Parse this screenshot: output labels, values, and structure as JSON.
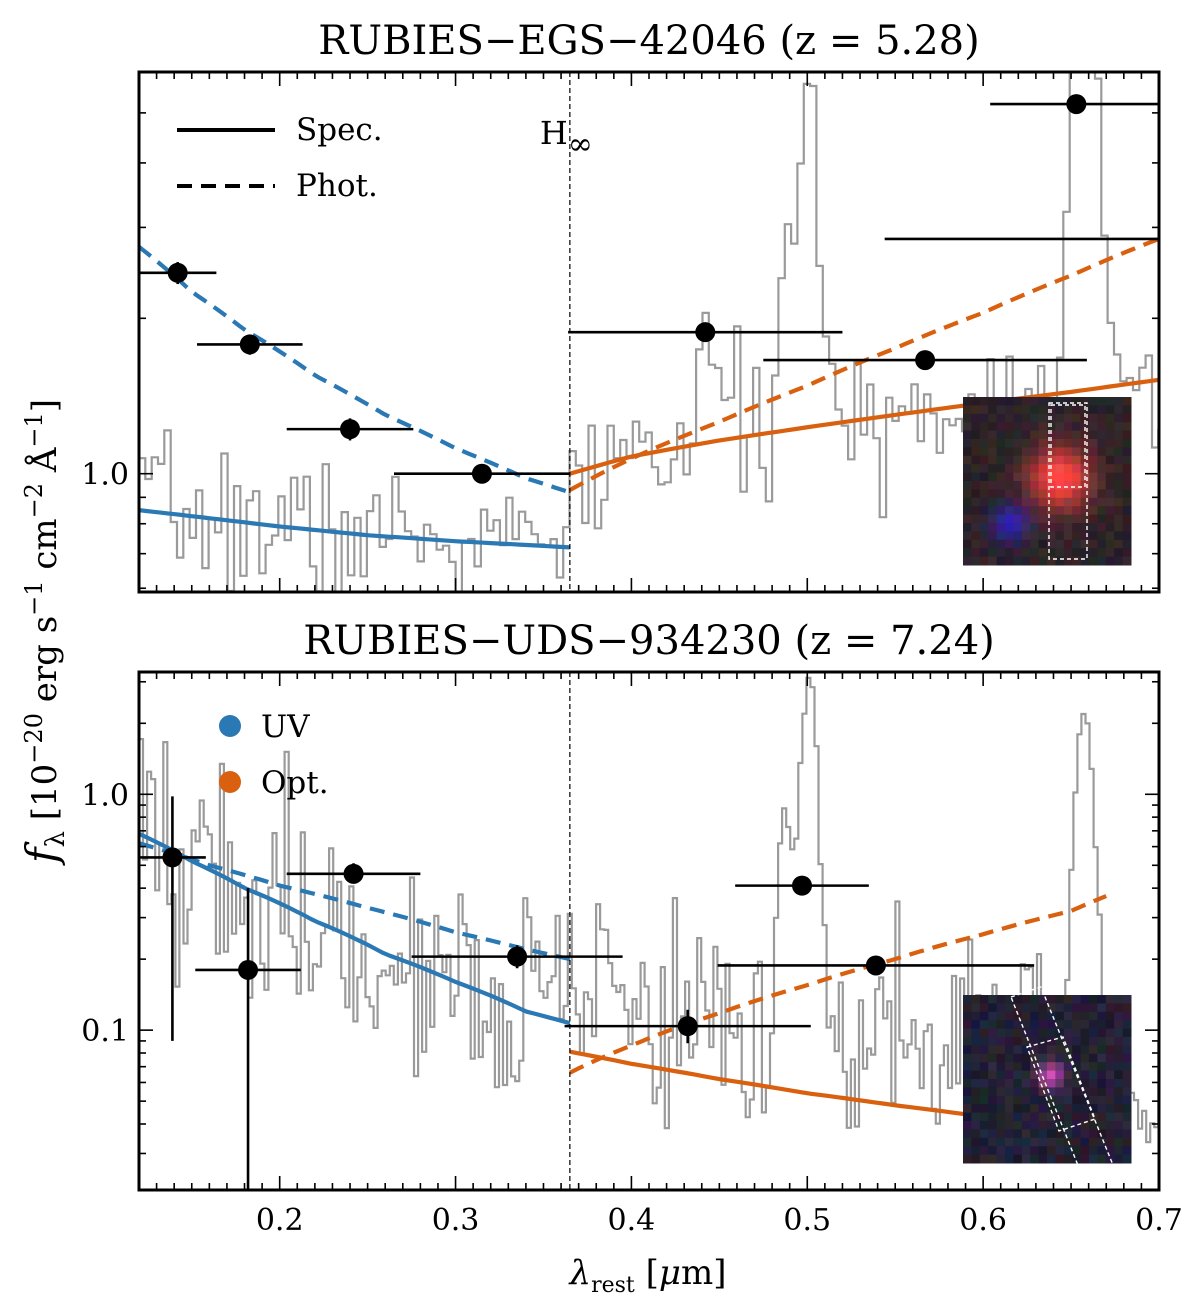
{
  "figure": {
    "ylabel": "f_λ [10^-20 erg s^-1 cm^-2 Å^-1]",
    "xlabel": "λ_rest [μm]"
  },
  "colors": {
    "uv": "#2a78b4",
    "opt": "#d9600e",
    "spectrum": "#9a9a9a",
    "photometry": "#000000"
  },
  "chart_data": [
    {
      "type": "line",
      "title": "RUBIES−EGS−42046 (z = 5.28)",
      "xlabel": "λ_rest [μm]",
      "ylabel": "f_λ [10^-20 erg s^-1 cm^-2 Å^-1]",
      "xlim": [
        0.12,
        0.7
      ],
      "ylim": [
        0.59,
        6.0
      ],
      "yscale": "log",
      "yticks": [
        1.0
      ],
      "ytick_labels": [
        "1.0"
      ],
      "xticks": [
        0.2,
        0.3,
        0.4,
        0.5,
        0.6,
        0.7
      ],
      "xtick_labels": [],
      "legend": {
        "position": "top-left",
        "entries": [
          {
            "label": "Spec.",
            "style": "solid"
          },
          {
            "label": "Phot.",
            "style": "dashed"
          }
        ]
      },
      "annotation": {
        "x": 0.365,
        "label": "H∞"
      },
      "spectrum_seed": 7,
      "spectrum_lines": [
        {
          "x": 0.441,
          "amp": 0.9,
          "w": 0.004
        },
        {
          "x": 0.486,
          "amp": 1.5,
          "w": 0.004
        },
        {
          "x": 0.496,
          "amp": 2.5,
          "w": 0.003
        },
        {
          "x": 0.5007,
          "amp": 4.0,
          "w": 0.003
        },
        {
          "x": 0.6563,
          "amp": 9.0,
          "w": 0.006
        }
      ],
      "series": [
        {
          "name": "UV",
          "fit": "Spec.",
          "x": [
            0.12,
            0.16,
            0.2,
            0.25,
            0.3,
            0.365
          ],
          "values": [
            0.85,
            0.82,
            0.79,
            0.76,
            0.74,
            0.72
          ]
        },
        {
          "name": "UV",
          "fit": "Phot.",
          "x": [
            0.12,
            0.15,
            0.18,
            0.22,
            0.26,
            0.3,
            0.34,
            0.365
          ],
          "values": [
            2.75,
            2.25,
            1.9,
            1.55,
            1.3,
            1.12,
            0.98,
            0.92
          ]
        },
        {
          "name": "Opt.",
          "fit": "Spec.",
          "x": [
            0.365,
            0.4,
            0.45,
            0.5,
            0.55,
            0.6,
            0.65,
            0.7
          ],
          "values": [
            1.0,
            1.08,
            1.16,
            1.23,
            1.3,
            1.37,
            1.44,
            1.52
          ]
        },
        {
          "name": "Opt.",
          "fit": "Phot.",
          "x": [
            0.365,
            0.4,
            0.45,
            0.5,
            0.55,
            0.6,
            0.65,
            0.7
          ],
          "values": [
            0.93,
            1.07,
            1.26,
            1.48,
            1.75,
            2.05,
            2.42,
            2.85
          ]
        }
      ],
      "photometry": [
        {
          "x": 0.142,
          "y": 2.45,
          "xerr": [
            0.022,
            0.022
          ],
          "yerr": [
            0.12,
            0.12
          ]
        },
        {
          "x": 0.183,
          "y": 1.78,
          "xerr": [
            0.03,
            0.03
          ],
          "yerr": [
            0.08,
            0.08
          ]
        },
        {
          "x": 0.24,
          "y": 1.22,
          "xerr": [
            0.036,
            0.036
          ],
          "yerr": [
            0.06,
            0.06
          ]
        },
        {
          "x": 0.315,
          "y": 1.0,
          "xerr": [
            0.05,
            0.05
          ],
          "yerr": [
            0.03,
            0.03
          ]
        },
        {
          "x": 0.442,
          "y": 1.88,
          "xerr": [
            0.078,
            0.078
          ],
          "yerr": [
            0.06,
            0.06
          ]
        },
        {
          "x": 0.567,
          "y": 1.66,
          "xerr": [
            0.092,
            0.092
          ],
          "yerr": [
            0.05,
            0.05
          ]
        },
        {
          "x": 0.653,
          "y": 5.2,
          "xerr": [
            0.049,
            0.049
          ],
          "yerr": [
            0.12,
            0.12
          ]
        },
        {
          "x": 0.656,
          "y": 2.85,
          "xerr": [
            0.112,
            0.112
          ],
          "yerr": [
            0.0,
            0.0
          ]
        }
      ]
    },
    {
      "type": "line",
      "title": "RUBIES−UDS−934230 (z = 7.24)",
      "xlabel": "λ_rest [μm]",
      "ylabel": "f_λ [10^-20 erg s^-1 cm^-2 Å^-1]",
      "xlim": [
        0.12,
        0.7
      ],
      "ylim": [
        0.021,
        3.3
      ],
      "yscale": "log",
      "yticks": [
        0.1,
        1.0
      ],
      "ytick_labels": [
        "0.1",
        "1.0"
      ],
      "xticks": [
        0.2,
        0.3,
        0.4,
        0.5,
        0.6,
        0.7
      ],
      "xtick_labels": [
        "0.2",
        "0.3",
        "0.4",
        "0.5",
        "0.6",
        "0.7"
      ],
      "legend": {
        "position": "top-left",
        "entries": [
          {
            "label": "UV",
            "style": "marker"
          },
          {
            "label": "Opt.",
            "style": "marker"
          }
        ]
      },
      "annotation": {
        "x": 0.365,
        "label": ""
      },
      "spectrum_seed": 19,
      "spectrum_lines": [
        {
          "x": 0.486,
          "amp": 0.8,
          "w": 0.003
        },
        {
          "x": 0.496,
          "amp": 0.8,
          "w": 0.003
        },
        {
          "x": 0.5007,
          "amp": 2.8,
          "w": 0.003
        },
        {
          "x": 0.6563,
          "amp": 2.1,
          "w": 0.004
        }
      ],
      "series": [
        {
          "name": "UV",
          "fit": "Spec.",
          "x": [
            0.12,
            0.15,
            0.18,
            0.22,
            0.26,
            0.3,
            0.34,
            0.365
          ],
          "values": [
            0.68,
            0.52,
            0.4,
            0.29,
            0.21,
            0.16,
            0.12,
            0.107
          ]
        },
        {
          "name": "UV",
          "fit": "Phot.",
          "x": [
            0.12,
            0.16,
            0.2,
            0.25,
            0.3,
            0.34,
            0.365
          ],
          "values": [
            0.62,
            0.5,
            0.41,
            0.33,
            0.26,
            0.22,
            0.2
          ]
        },
        {
          "name": "Opt.",
          "fit": "Spec.",
          "x": [
            0.365,
            0.4,
            0.45,
            0.5,
            0.55,
            0.6,
            0.65,
            0.67
          ],
          "values": [
            0.081,
            0.072,
            0.062,
            0.054,
            0.048,
            0.043,
            0.039,
            0.038
          ]
        },
        {
          "name": "Opt.",
          "fit": "Phot.",
          "x": [
            0.365,
            0.4,
            0.45,
            0.5,
            0.55,
            0.6,
            0.65,
            0.67
          ],
          "values": [
            0.066,
            0.086,
            0.118,
            0.155,
            0.2,
            0.255,
            0.32,
            0.37
          ]
        }
      ],
      "photometry": [
        {
          "x": 0.139,
          "y": 0.54,
          "xerr": [
            0.019,
            0.019
          ],
          "yerr": [
            0.45,
            0.44
          ]
        },
        {
          "x": 0.182,
          "y": 0.18,
          "xerr": [
            0.03,
            0.03
          ],
          "yerr": [
            0.16,
            0.22
          ]
        },
        {
          "x": 0.242,
          "y": 0.46,
          "xerr": [
            0.038,
            0.038
          ],
          "yerr": [
            0.04,
            0.05
          ]
        },
        {
          "x": 0.335,
          "y": 0.205,
          "xerr": [
            0.06,
            0.06
          ],
          "yerr": [
            0.022,
            0.024
          ]
        },
        {
          "x": 0.432,
          "y": 0.104,
          "xerr": [
            0.07,
            0.07
          ],
          "yerr": [
            0.016,
            0.018
          ]
        },
        {
          "x": 0.497,
          "y": 0.41,
          "xerr": [
            0.038,
            0.038
          ],
          "yerr": [
            0.02,
            0.02
          ]
        },
        {
          "x": 0.539,
          "y": 0.188,
          "xerr": [
            0.09,
            0.09
          ],
          "yerr": [
            0.008,
            0.008
          ]
        }
      ]
    }
  ]
}
